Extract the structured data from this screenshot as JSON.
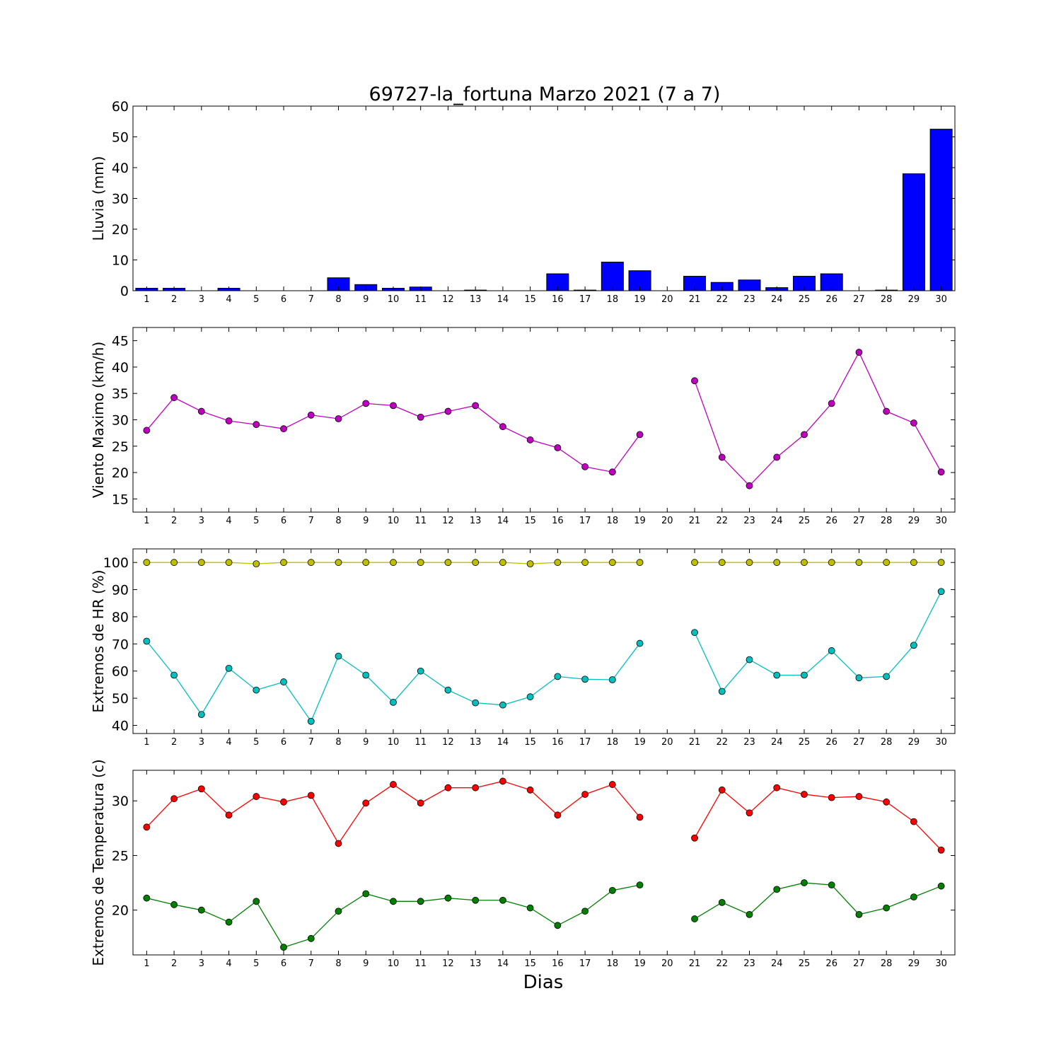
{
  "figure": {
    "title": "69727-la_fortuna Marzo 2021  (7 a 7)",
    "xlabel": "Dias"
  },
  "chart_data": [
    {
      "type": "bar",
      "ylabel": "Lluvia (mm)",
      "ylim": [
        0,
        60
      ],
      "yticks": [
        0,
        10,
        20,
        30,
        40,
        50,
        60
      ],
      "x": [
        1,
        2,
        3,
        4,
        5,
        6,
        7,
        8,
        9,
        10,
        11,
        12,
        13,
        14,
        15,
        16,
        17,
        18,
        19,
        20,
        21,
        22,
        23,
        24,
        25,
        26,
        27,
        28,
        29,
        30
      ],
      "xlim": [
        0.5,
        30.5
      ],
      "grid": false,
      "series": [
        {
          "color": "#0000ff",
          "values": [
            0.8,
            0.8,
            0,
            0.8,
            0,
            0,
            0,
            4.2,
            2.0,
            0.8,
            1.2,
            0,
            0.2,
            0,
            0,
            5.5,
            0.2,
            9.3,
            6.5,
            0,
            4.7,
            2.7,
            3.5,
            1.0,
            4.7,
            5.5,
            0,
            0.2,
            38.0,
            52.5
          ]
        }
      ]
    },
    {
      "type": "line",
      "ylabel": "Viento Maximo (km/h)",
      "ylim": [
        12.5,
        47.5
      ],
      "yticks": [
        15,
        20,
        25,
        30,
        35,
        40,
        45
      ],
      "x": [
        1,
        2,
        3,
        4,
        5,
        6,
        7,
        8,
        9,
        10,
        11,
        12,
        13,
        14,
        15,
        16,
        17,
        18,
        19,
        20,
        21,
        22,
        23,
        24,
        25,
        26,
        27,
        28,
        29,
        30
      ],
      "xlim": [
        0.5,
        30.5
      ],
      "grid": false,
      "series": [
        {
          "color": "#bf00bf",
          "values": [
            28.0,
            34.2,
            31.6,
            29.8,
            29.1,
            28.3,
            30.9,
            30.2,
            33.1,
            32.7,
            30.5,
            31.6,
            32.7,
            28.7,
            26.2,
            24.7,
            21.1,
            20.1,
            27.2,
            null,
            37.4,
            22.9,
            17.5,
            22.9,
            27.2,
            33.1,
            42.8,
            31.6,
            29.4,
            20.1
          ]
        }
      ]
    },
    {
      "type": "line",
      "ylabel": "Extremos de HR (%)",
      "ylim": [
        37,
        105
      ],
      "yticks": [
        40,
        50,
        60,
        70,
        80,
        90,
        100
      ],
      "x": [
        1,
        2,
        3,
        4,
        5,
        6,
        7,
        8,
        9,
        10,
        11,
        12,
        13,
        14,
        15,
        16,
        17,
        18,
        19,
        20,
        21,
        22,
        23,
        24,
        25,
        26,
        27,
        28,
        29,
        30
      ],
      "xlim": [
        0.5,
        30.5
      ],
      "grid": false,
      "series": [
        {
          "color": "#bfbf00",
          "values": [
            100,
            100,
            100,
            100,
            99.5,
            100,
            100,
            100,
            100,
            100,
            100,
            100,
            100,
            100,
            99.5,
            100,
            100,
            100,
            100,
            null,
            100,
            100,
            100,
            100,
            100,
            100,
            100,
            100,
            100,
            100
          ]
        },
        {
          "color": "#00bfbf",
          "values": [
            71,
            58.5,
            44,
            61,
            53,
            56,
            41.5,
            65.5,
            58.5,
            48.5,
            60,
            53,
            48.3,
            47.5,
            50.5,
            58,
            57,
            56.8,
            70.2,
            null,
            74.2,
            52.5,
            64.2,
            58.5,
            58.5,
            67.5,
            57.5,
            58,
            69.5,
            89.3
          ]
        }
      ]
    },
    {
      "type": "line",
      "ylabel": "Extremos de Temperatura (c)",
      "ylim": [
        15.9,
        32.8
      ],
      "yticks": [
        20,
        25,
        30
      ],
      "x": [
        1,
        2,
        3,
        4,
        5,
        6,
        7,
        8,
        9,
        10,
        11,
        12,
        13,
        14,
        15,
        16,
        17,
        18,
        19,
        20,
        21,
        22,
        23,
        24,
        25,
        26,
        27,
        28,
        29,
        30
      ],
      "xlim": [
        0.5,
        30.5
      ],
      "grid": false,
      "series": [
        {
          "color": "#ff0000",
          "values": [
            27.6,
            30.2,
            31.1,
            28.7,
            30.4,
            29.9,
            30.5,
            26.1,
            29.8,
            31.5,
            29.8,
            31.2,
            31.2,
            31.8,
            31.0,
            28.7,
            30.6,
            31.5,
            28.5,
            null,
            26.6,
            31.0,
            28.9,
            31.2,
            30.6,
            30.3,
            30.4,
            29.9,
            28.1,
            25.5
          ]
        },
        {
          "color": "#007f00",
          "values": [
            21.1,
            20.5,
            20.0,
            18.9,
            20.8,
            16.6,
            17.4,
            19.9,
            21.5,
            20.8,
            20.8,
            21.1,
            20.9,
            20.9,
            20.2,
            18.6,
            19.9,
            21.8,
            22.3,
            null,
            19.2,
            20.7,
            19.6,
            21.9,
            22.5,
            22.3,
            19.6,
            20.2,
            21.2,
            22.2
          ]
        }
      ]
    }
  ]
}
